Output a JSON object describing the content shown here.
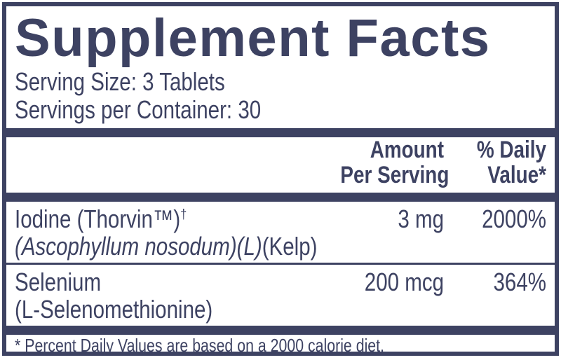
{
  "label": {
    "title": "Supplement Facts",
    "serving_size": "Serving Size: 3 Tablets",
    "servings_per_container": "Servings per Container: 30",
    "header": {
      "amount_line1": "Amount",
      "amount_line2": "Per Serving",
      "dv_line1": "% Daily",
      "dv_line2": "Value*"
    },
    "rows": [
      {
        "name": "Iodine (Thorvin™)",
        "dagger": "†",
        "sub_italic": "(Ascophyllum nosodum)(L)",
        "sub_regular": "(Kelp)",
        "amount": "3 mg",
        "dv": "2000%"
      },
      {
        "name": "Selenium",
        "dagger": "",
        "sub_italic": "",
        "sub_regular": "(L-Selenomethionine)",
        "amount": "200 mcg",
        "dv": "364%"
      }
    ],
    "footnote": "* Percent Daily Values are based on a 2000 calorie diet.",
    "colors": {
      "navy": "#3d4262",
      "background": "#ffffff"
    }
  }
}
